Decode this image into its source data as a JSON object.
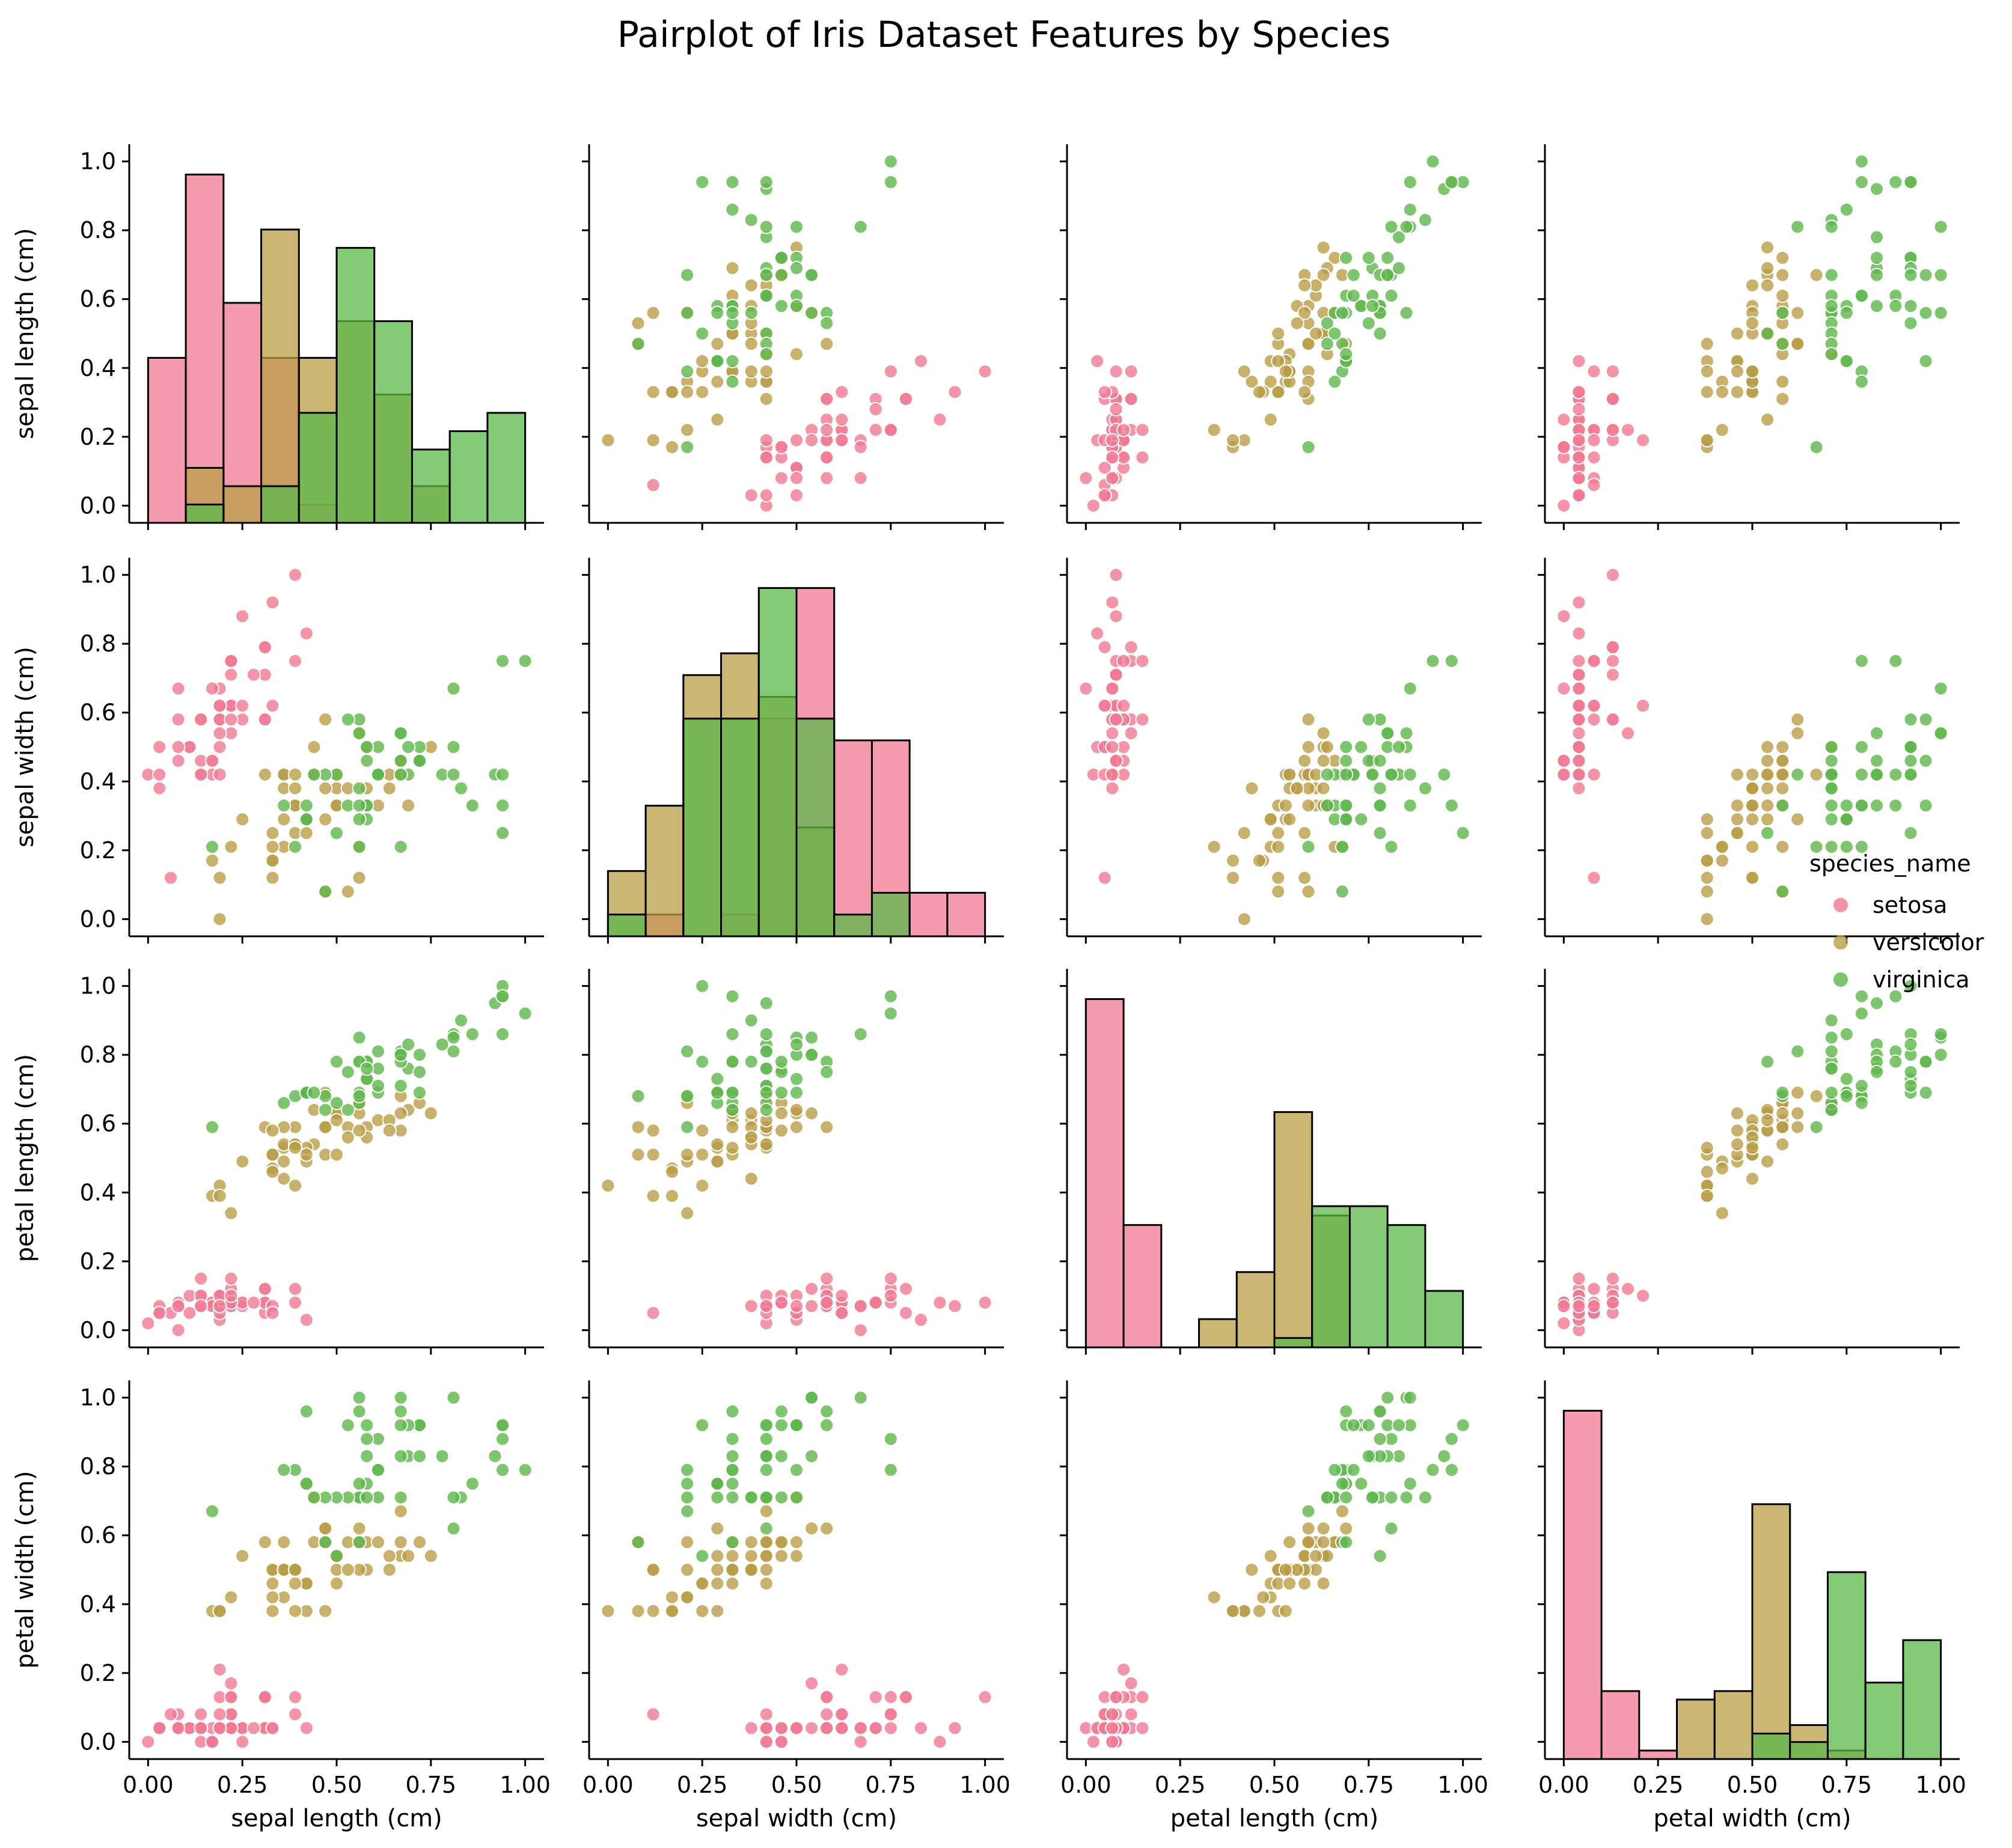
{
  "chart_data": {
    "type": "scatter",
    "title": "Pairplot of Iris Dataset Features by Species",
    "variables": [
      "sepal length (cm)",
      "sepal width (cm)",
      "petal length (cm)",
      "petal width (cm)"
    ],
    "xlim": [
      -0.05,
      1.05
    ],
    "ylim": [
      -0.05,
      1.05
    ],
    "ticks": [
      0.0,
      0.2,
      0.4,
      0.6,
      0.8,
      1.0
    ],
    "x_ticks": [
      0.0,
      0.25,
      0.5,
      0.75,
      1.0
    ],
    "x_tick_labels": [
      "0.00",
      "0.25",
      "0.50",
      "0.75",
      "1.00"
    ],
    "y_tick_labels": [
      "0.0",
      "0.2",
      "0.4",
      "0.6",
      "0.8",
      "1.0"
    ],
    "grid": false,
    "legend": {
      "title": "species_name",
      "placement": "right",
      "entries": [
        {
          "name": "setosa",
          "color": "#f37892"
        },
        {
          "name": "versicolor",
          "color": "#b99d46"
        },
        {
          "name": "virginica",
          "color": "#5cb84a"
        }
      ]
    },
    "species": [
      {
        "name": "setosa",
        "color": "#f37892",
        "points": [
          [
            0.22,
            0.62,
            0.07,
            0.04
          ],
          [
            0.17,
            0.42,
            0.07,
            0.04
          ],
          [
            0.11,
            0.5,
            0.05,
            0.04
          ],
          [
            0.08,
            0.46,
            0.08,
            0.04
          ],
          [
            0.19,
            0.67,
            0.07,
            0.04
          ],
          [
            0.31,
            0.79,
            0.12,
            0.13
          ],
          [
            0.08,
            0.58,
            0.07,
            0.08
          ],
          [
            0.19,
            0.58,
            0.08,
            0.04
          ],
          [
            0.03,
            0.38,
            0.07,
            0.04
          ],
          [
            0.17,
            0.46,
            0.08,
            0.0
          ],
          [
            0.31,
            0.71,
            0.08,
            0.04
          ],
          [
            0.14,
            0.58,
            0.1,
            0.04
          ],
          [
            0.14,
            0.42,
            0.07,
            0.0
          ],
          [
            0.0,
            0.42,
            0.02,
            0.0
          ],
          [
            0.42,
            0.83,
            0.03,
            0.04
          ],
          [
            0.39,
            1.0,
            0.08,
            0.13
          ],
          [
            0.31,
            0.79,
            0.05,
            0.13
          ],
          [
            0.22,
            0.62,
            0.07,
            0.08
          ],
          [
            0.39,
            0.75,
            0.12,
            0.08
          ],
          [
            0.22,
            0.75,
            0.08,
            0.08
          ],
          [
            0.31,
            0.58,
            0.12,
            0.04
          ],
          [
            0.22,
            0.71,
            0.08,
            0.13
          ],
          [
            0.08,
            0.67,
            0.0,
            0.04
          ],
          [
            0.22,
            0.54,
            0.12,
            0.17
          ],
          [
            0.14,
            0.58,
            0.15,
            0.04
          ],
          [
            0.19,
            0.42,
            0.1,
            0.04
          ],
          [
            0.19,
            0.58,
            0.1,
            0.13
          ],
          [
            0.25,
            0.62,
            0.08,
            0.04
          ],
          [
            0.25,
            0.58,
            0.07,
            0.04
          ],
          [
            0.11,
            0.5,
            0.1,
            0.04
          ],
          [
            0.14,
            0.46,
            0.1,
            0.04
          ],
          [
            0.31,
            0.58,
            0.08,
            0.13
          ],
          [
            0.25,
            0.88,
            0.08,
            0.0
          ],
          [
            0.33,
            0.92,
            0.07,
            0.04
          ],
          [
            0.17,
            0.46,
            0.08,
            0.0
          ],
          [
            0.19,
            0.5,
            0.03,
            0.04
          ],
          [
            0.33,
            0.62,
            0.05,
            0.04
          ],
          [
            0.17,
            0.67,
            0.07,
            0.0
          ],
          [
            0.03,
            0.42,
            0.05,
            0.04
          ],
          [
            0.22,
            0.58,
            0.08,
            0.04
          ],
          [
            0.19,
            0.62,
            0.05,
            0.08
          ],
          [
            0.06,
            0.12,
            0.05,
            0.08
          ],
          [
            0.03,
            0.5,
            0.05,
            0.04
          ],
          [
            0.19,
            0.62,
            0.1,
            0.21
          ],
          [
            0.22,
            0.75,
            0.15,
            0.13
          ],
          [
            0.14,
            0.42,
            0.07,
            0.08
          ],
          [
            0.22,
            0.75,
            0.1,
            0.04
          ],
          [
            0.08,
            0.5,
            0.07,
            0.04
          ],
          [
            0.28,
            0.71,
            0.08,
            0.04
          ],
          [
            0.19,
            0.54,
            0.07,
            0.04
          ]
        ]
      },
      {
        "name": "versicolor",
        "color": "#b99d46",
        "points": [
          [
            0.75,
            0.5,
            0.63,
            0.54
          ],
          [
            0.58,
            0.5,
            0.59,
            0.58
          ],
          [
            0.72,
            0.46,
            0.66,
            0.58
          ],
          [
            0.33,
            0.12,
            0.51,
            0.5
          ],
          [
            0.61,
            0.33,
            0.61,
            0.58
          ],
          [
            0.39,
            0.33,
            0.59,
            0.5
          ],
          [
            0.56,
            0.54,
            0.63,
            0.62
          ],
          [
            0.17,
            0.17,
            0.39,
            0.38
          ],
          [
            0.64,
            0.38,
            0.61,
            0.5
          ],
          [
            0.25,
            0.29,
            0.49,
            0.54
          ],
          [
            0.19,
            0.0,
            0.42,
            0.38
          ],
          [
            0.44,
            0.42,
            0.54,
            0.58
          ],
          [
            0.47,
            0.08,
            0.51,
            0.38
          ],
          [
            0.5,
            0.38,
            0.63,
            0.54
          ],
          [
            0.36,
            0.38,
            0.44,
            0.5
          ],
          [
            0.67,
            0.46,
            0.58,
            0.54
          ],
          [
            0.36,
            0.42,
            0.59,
            0.58
          ],
          [
            0.42,
            0.29,
            0.53,
            0.38
          ],
          [
            0.53,
            0.08,
            0.59,
            0.58
          ],
          [
            0.36,
            0.21,
            0.49,
            0.42
          ],
          [
            0.44,
            0.5,
            0.64,
            0.71
          ],
          [
            0.5,
            0.33,
            0.51,
            0.5
          ],
          [
            0.56,
            0.21,
            0.66,
            0.58
          ],
          [
            0.5,
            0.33,
            0.63,
            0.46
          ],
          [
            0.58,
            0.38,
            0.56,
            0.5
          ],
          [
            0.64,
            0.42,
            0.58,
            0.54
          ],
          [
            0.69,
            0.33,
            0.64,
            0.54
          ],
          [
            0.67,
            0.42,
            0.68,
            0.67
          ],
          [
            0.47,
            0.38,
            0.59,
            0.58
          ],
          [
            0.39,
            0.25,
            0.42,
            0.38
          ],
          [
            0.33,
            0.17,
            0.47,
            0.42
          ],
          [
            0.33,
            0.17,
            0.46,
            0.38
          ],
          [
            0.42,
            0.29,
            0.49,
            0.46
          ],
          [
            0.47,
            0.29,
            0.69,
            0.62
          ],
          [
            0.31,
            0.42,
            0.59,
            0.58
          ],
          [
            0.47,
            0.58,
            0.59,
            0.62
          ],
          [
            0.67,
            0.46,
            0.63,
            0.58
          ],
          [
            0.56,
            0.12,
            0.58,
            0.5
          ],
          [
            0.36,
            0.42,
            0.53,
            0.5
          ],
          [
            0.33,
            0.21,
            0.51,
            0.5
          ],
          [
            0.33,
            0.25,
            0.58,
            0.46
          ],
          [
            0.5,
            0.42,
            0.61,
            0.54
          ],
          [
            0.42,
            0.25,
            0.51,
            0.46
          ],
          [
            0.19,
            0.12,
            0.39,
            0.38
          ],
          [
            0.36,
            0.29,
            0.54,
            0.5
          ],
          [
            0.39,
            0.42,
            0.54,
            0.46
          ],
          [
            0.39,
            0.38,
            0.54,
            0.5
          ],
          [
            0.53,
            0.38,
            0.56,
            0.5
          ],
          [
            0.22,
            0.21,
            0.34,
            0.42
          ],
          [
            0.39,
            0.33,
            0.53,
            0.5
          ]
        ]
      },
      {
        "name": "virginica",
        "color": "#5cb84a",
        "points": [
          [
            0.56,
            0.54,
            0.85,
            1.0
          ],
          [
            0.42,
            0.29,
            0.69,
            0.75
          ],
          [
            0.78,
            0.42,
            0.83,
            0.83
          ],
          [
            0.56,
            0.38,
            0.78,
            0.71
          ],
          [
            0.61,
            0.42,
            0.81,
            0.88
          ],
          [
            0.92,
            0.42,
            0.95,
            0.83
          ],
          [
            0.17,
            0.21,
            0.59,
            0.67
          ],
          [
            0.83,
            0.38,
            0.9,
            0.71
          ],
          [
            0.67,
            0.21,
            0.81,
            0.71
          ],
          [
            0.81,
            0.67,
            0.86,
            1.0
          ],
          [
            0.61,
            0.5,
            0.69,
            0.79
          ],
          [
            0.58,
            0.29,
            0.73,
            0.75
          ],
          [
            0.69,
            0.42,
            0.76,
            0.83
          ],
          [
            0.39,
            0.21,
            0.68,
            0.79
          ],
          [
            0.42,
            0.33,
            0.69,
            0.96
          ],
          [
            0.58,
            0.5,
            0.73,
            0.92
          ],
          [
            0.61,
            0.42,
            0.76,
            0.71
          ],
          [
            0.94,
            0.75,
            0.97,
            0.88
          ],
          [
            0.94,
            0.25,
            1.0,
            0.92
          ],
          [
            0.47,
            0.08,
            0.68,
            0.58
          ],
          [
            0.72,
            0.5,
            0.8,
            0.92
          ],
          [
            0.36,
            0.33,
            0.66,
            0.79
          ],
          [
            0.94,
            0.33,
            0.97,
            0.79
          ],
          [
            0.56,
            0.29,
            0.66,
            0.71
          ],
          [
            0.67,
            0.54,
            0.8,
            0.83
          ],
          [
            0.81,
            0.5,
            0.85,
            0.71
          ],
          [
            0.53,
            0.33,
            0.64,
            0.71
          ],
          [
            0.5,
            0.42,
            0.66,
            0.71
          ],
          [
            0.58,
            0.33,
            0.78,
            0.83
          ],
          [
            0.81,
            0.42,
            0.81,
            0.62
          ],
          [
            0.86,
            0.33,
            0.86,
            0.75
          ],
          [
            1.0,
            0.75,
            0.92,
            0.79
          ],
          [
            0.58,
            0.33,
            0.78,
            0.88
          ],
          [
            0.56,
            0.33,
            0.69,
            0.58
          ],
          [
            0.5,
            0.25,
            0.78,
            0.54
          ],
          [
            0.94,
            0.42,
            0.86,
            0.92
          ],
          [
            0.56,
            0.58,
            0.78,
            0.96
          ],
          [
            0.58,
            0.46,
            0.76,
            0.71
          ],
          [
            0.47,
            0.42,
            0.64,
            0.71
          ],
          [
            0.72,
            0.46,
            0.75,
            0.83
          ],
          [
            0.67,
            0.46,
            0.78,
            0.96
          ],
          [
            0.72,
            0.46,
            0.69,
            0.92
          ],
          [
            0.42,
            0.29,
            0.69,
            0.75
          ],
          [
            0.69,
            0.5,
            0.83,
            0.92
          ],
          [
            0.67,
            0.54,
            0.8,
            1.0
          ],
          [
            0.67,
            0.42,
            0.71,
            0.92
          ],
          [
            0.56,
            0.21,
            0.68,
            0.75
          ],
          [
            0.61,
            0.42,
            0.71,
            0.79
          ],
          [
            0.53,
            0.58,
            0.75,
            0.92
          ],
          [
            0.44,
            0.42,
            0.69,
            0.71
          ]
        ]
      }
    ]
  }
}
